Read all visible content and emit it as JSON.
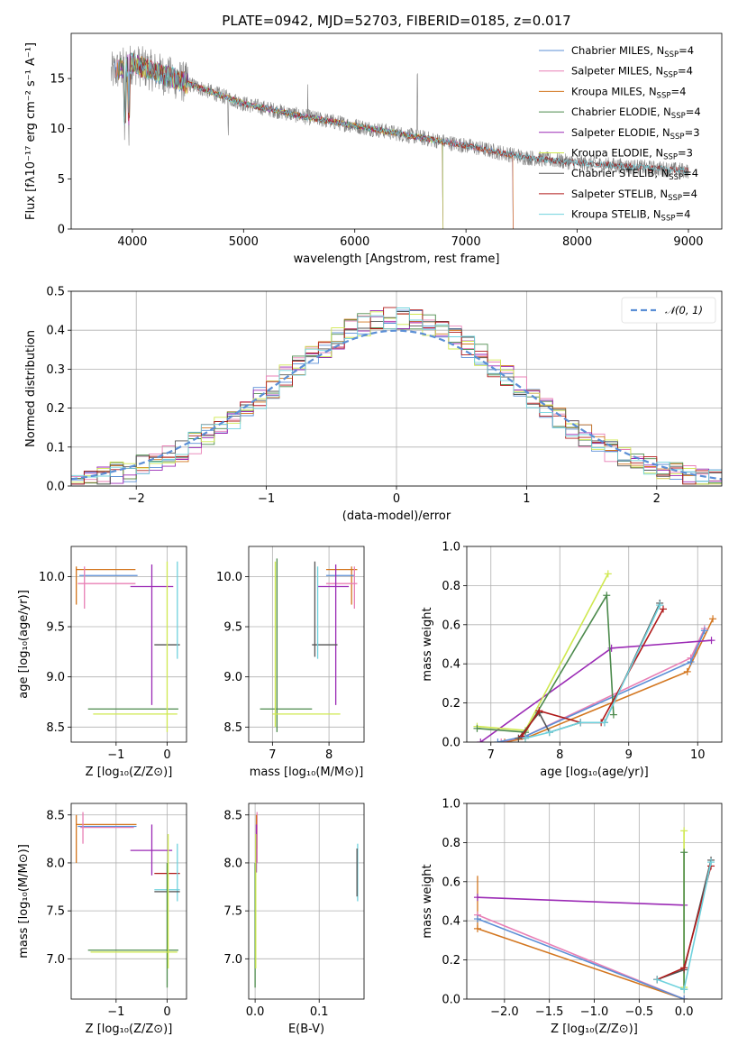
{
  "title": "PLATE=0942, MJD=52703, FIBERID=0185, z=0.017",
  "colors": {
    "chabrier_miles": "#5b8fd6",
    "salpeter_miles": "#e87fb5",
    "kroupa_miles": "#d3761f",
    "chabrier_elodie": "#4c8a4c",
    "salpeter_elodie": "#9b2ab5",
    "kroupa_elodie": "#cfe84f",
    "chabrier_stelib": "#555555",
    "salpeter_stelib": "#b01a1a",
    "kroupa_stelib": "#6fd2dd",
    "data": "#808080",
    "gauss": "#5b8fd6"
  },
  "chart_data": [
    {
      "type": "line",
      "xlabel": "wavelength [Angstrom, rest frame]",
      "ylabel": "Flux [fλ10⁻¹⁷ erg cm⁻² s⁻¹ A⁻¹]",
      "xlim": [
        3450,
        9300
      ],
      "ylim": [
        0,
        19.5
      ],
      "xticks": [
        4000,
        5000,
        6000,
        7000,
        8000,
        9000
      ],
      "yticks": [
        0,
        5,
        10,
        15
      ],
      "legend_position": "top-right",
      "continuum": {
        "x": [
          3800,
          4000,
          4500,
          5000,
          5500,
          6000,
          6500,
          7000,
          7500,
          8000,
          8500,
          9000
        ],
        "y": [
          15.5,
          16.5,
          14.5,
          12.5,
          11.3,
          10.3,
          9.3,
          8.3,
          7.2,
          6.6,
          6.2,
          5.8
        ]
      },
      "series": [
        {
          "name": "Chabrier MILES, N",
          "sub": "SSP",
          "suffix": "=4"
        },
        {
          "name": "Salpeter MILES, N",
          "sub": "SSP",
          "suffix": "=4"
        },
        {
          "name": "Kroupa MILES, N",
          "sub": "SSP",
          "suffix": "=4"
        },
        {
          "name": "Chabrier ELODIE, N",
          "sub": "SSP",
          "suffix": "=4"
        },
        {
          "name": "Salpeter ELODIE, N",
          "sub": "SSP",
          "suffix": "=3"
        },
        {
          "name": "Kroupa ELODIE, N",
          "sub": "SSP",
          "suffix": "=3"
        },
        {
          "name": "Chabrier STELIB, N",
          "sub": "SSP",
          "suffix": "=4"
        },
        {
          "name": "Salpeter STELIB, N",
          "sub": "SSP",
          "suffix": "=4"
        },
        {
          "name": "Kroupa STELIB, N",
          "sub": "SSP",
          "suffix": "=4"
        }
      ]
    },
    {
      "type": "line",
      "xlabel": "(data-model)/error",
      "ylabel": "Normed distribution",
      "xlim": [
        -2.5,
        2.5
      ],
      "ylim": [
        0,
        0.5
      ],
      "xticks": [
        -2,
        -1,
        0,
        1,
        2
      ],
      "yticks": [
        0.0,
        0.1,
        0.2,
        0.3,
        0.4,
        0.5
      ],
      "gauss_label": "𝒩(0, 1)",
      "bin_width": 0.1,
      "bin_start": -2.5,
      "base_amplitude": 0.41,
      "base_sigma": 0.92
    },
    {
      "type": "scatter",
      "xlabel": "Z [log₁₀(Z/Z⊙)]",
      "ylabel": "age  [log₁₀(age/yr)]",
      "xlim": [
        -1.88,
        0.38
      ],
      "ylim": [
        8.35,
        10.3
      ],
      "xticks": [
        -1,
        0
      ],
      "yticks": [
        8.5,
        9.0,
        9.5,
        10.0
      ],
      "segments": [
        {
          "c": "kroupa_miles",
          "x1": -1.78,
          "x2": -0.62,
          "y": 10.07,
          "vx": -1.78,
          "vy1": 9.72,
          "vy2": 10.1
        },
        {
          "c": "chabrier_miles",
          "x1": -1.72,
          "x2": -0.58,
          "y": 10.01
        },
        {
          "c": "salpeter_miles",
          "x1": -1.75,
          "x2": -0.62,
          "y": 9.93,
          "vx": -1.62,
          "vy1": 9.68,
          "vy2": 10.1
        },
        {
          "c": "salpeter_elodie",
          "x1": -0.72,
          "x2": 0.12,
          "y": 9.9,
          "vx": -0.3,
          "vy1": 8.72,
          "vy2": 10.12
        },
        {
          "c": "chabrier_stelib",
          "x1": -0.25,
          "x2": 0.25,
          "y": 9.32
        },
        {
          "c": "kroupa_stelib",
          "x1": 0.2,
          "x2": 0.2,
          "y": 9.32,
          "vx": 0.2,
          "vy1": 9.18,
          "vy2": 10.15
        },
        {
          "c": "chabrier_elodie",
          "x1": -1.55,
          "x2": 0.22,
          "y": 8.68
        },
        {
          "c": "kroupa_elodie",
          "x1": -1.45,
          "x2": 0.2,
          "y": 8.63,
          "vx": 0.0,
          "vy1": 8.45,
          "vy2": 10.15
        }
      ]
    },
    {
      "type": "scatter",
      "xlabel": "mass [log₁₀(M/M⊙)]",
      "ylabel": "",
      "xlim": [
        6.58,
        8.62
      ],
      "ylim": [
        8.35,
        10.3
      ],
      "xticks": [
        7,
        8
      ],
      "yticks": [
        8.5,
        9.0,
        9.5,
        10.0
      ],
      "segments": [
        {
          "c": "kroupa_miles",
          "x1": 7.95,
          "x2": 8.5,
          "y": 10.07,
          "vx": 8.4,
          "vy1": 9.72,
          "vy2": 10.1
        },
        {
          "c": "chabrier_miles",
          "x1": 7.95,
          "x2": 8.45,
          "y": 10.01
        },
        {
          "c": "salpeter_miles",
          "x1": 7.95,
          "x2": 8.5,
          "y": 9.93,
          "vx": 8.45,
          "vy1": 9.68,
          "vy2": 10.1
        },
        {
          "c": "salpeter_elodie",
          "x1": 7.8,
          "x2": 8.35,
          "y": 9.9,
          "vx": 8.12,
          "vy1": 8.72,
          "vy2": 10.12
        },
        {
          "c": "chabrier_stelib",
          "x1": 7.7,
          "x2": 8.15,
          "y": 9.32,
          "vx": 7.75,
          "vy1": 9.2,
          "vy2": 10.15
        },
        {
          "c": "kroupa_stelib",
          "x1": 7.8,
          "x2": 7.8,
          "y": 9.32,
          "vx": 7.8,
          "vy1": 9.18,
          "vy2": 10.1
        },
        {
          "c": "chabrier_elodie",
          "x1": 6.78,
          "x2": 7.7,
          "y": 8.68,
          "vx": 7.08,
          "vy1": 8.45,
          "vy2": 10.18
        },
        {
          "c": "kroupa_elodie",
          "x1": 7.0,
          "x2": 8.2,
          "y": 8.63,
          "vx": 7.05,
          "vy1": 8.5,
          "vy2": 10.15
        }
      ]
    },
    {
      "type": "line",
      "xlabel": "age  [log₁₀(age/yr)]",
      "ylabel": "mass weight",
      "xlim": [
        6.65,
        10.35
      ],
      "ylim": [
        0,
        1
      ],
      "xticks": [
        7,
        8,
        9,
        10
      ],
      "yticks": [
        0.0,
        0.2,
        0.4,
        0.6,
        0.8,
        1.0
      ],
      "lines": [
        {
          "c": "kroupa_miles",
          "x": [
            7.2,
            7.5,
            9.85,
            10.22
          ],
          "y": [
            0.0,
            0.02,
            0.36,
            0.63
          ]
        },
        {
          "c": "salpeter_miles",
          "x": [
            7.15,
            7.5,
            9.9,
            10.1
          ],
          "y": [
            0.0,
            0.03,
            0.43,
            0.58
          ]
        },
        {
          "c": "chabrier_miles",
          "x": [
            7.1,
            7.5,
            9.9,
            10.1
          ],
          "y": [
            0.0,
            0.03,
            0.41,
            0.57
          ]
        },
        {
          "c": "salpeter_elodie",
          "x": [
            6.85,
            8.75,
            10.2
          ],
          "y": [
            0.0,
            0.48,
            0.52
          ]
        },
        {
          "c": "kroupa_elodie",
          "x": [
            6.8,
            7.5,
            8.7
          ],
          "y": [
            0.08,
            0.06,
            0.86
          ]
        },
        {
          "c": "chabrier_elodie",
          "x": [
            6.8,
            7.5,
            8.68,
            8.78
          ],
          "y": [
            0.07,
            0.05,
            0.75,
            0.14
          ]
        },
        {
          "c": "chabrier_stelib",
          "x": [
            7.4,
            7.7,
            7.85,
            8.3,
            8.65,
            9.45
          ],
          "y": [
            0.02,
            0.15,
            0.05,
            0.1,
            0.1,
            0.71
          ]
        },
        {
          "c": "salpeter_stelib",
          "x": [
            7.45,
            7.7,
            8.3,
            8.6,
            9.5
          ],
          "y": [
            0.03,
            0.16,
            0.1,
            0.1,
            0.68
          ]
        },
        {
          "c": "kroupa_stelib",
          "x": [
            7.5,
            7.85,
            8.3,
            8.65,
            9.45
          ],
          "y": [
            0.02,
            0.05,
            0.1,
            0.1,
            0.7
          ]
        }
      ]
    },
    {
      "type": "scatter",
      "xlabel": "Z [log₁₀(Z/Z⊙)]",
      "ylabel": "mass [log₁₀(M/M⊙)]",
      "xlim": [
        -1.88,
        0.38
      ],
      "ylim": [
        6.58,
        8.62
      ],
      "xticks": [
        -1,
        0
      ],
      "yticks": [
        7.0,
        7.5,
        8.0,
        8.5
      ],
      "segments": [
        {
          "c": "kroupa_miles",
          "x1": -1.78,
          "x2": -0.6,
          "y": 8.4,
          "vx": -1.78,
          "vy1": 8.0,
          "vy2": 8.5
        },
        {
          "c": "chabrier_miles",
          "x1": -1.75,
          "x2": -0.6,
          "y": 8.38
        },
        {
          "c": "salpeter_miles",
          "x1": -1.7,
          "x2": -0.65,
          "y": 8.37,
          "vx": -1.65,
          "vy1": 8.2,
          "vy2": 8.53
        },
        {
          "c": "salpeter_elodie",
          "x1": -0.72,
          "x2": 0.1,
          "y": 8.13,
          "vx": -0.3,
          "vy1": 7.87,
          "vy2": 8.4
        },
        {
          "c": "salpeter_stelib",
          "x1": -0.25,
          "x2": 0.25,
          "y": 7.89
        },
        {
          "c": "kroupa_stelib",
          "x1": -0.25,
          "x2": 0.25,
          "y": 7.72,
          "vx": 0.2,
          "vy1": 7.6,
          "vy2": 8.2
        },
        {
          "c": "chabrier_stelib",
          "x1": -0.25,
          "x2": 0.25,
          "y": 7.7
        },
        {
          "c": "chabrier_elodie",
          "x1": -1.55,
          "x2": 0.22,
          "y": 7.09,
          "vx": 0.0,
          "vy1": 6.7,
          "vy2": 8.0
        },
        {
          "c": "kroupa_elodie",
          "x1": -1.5,
          "x2": 0.2,
          "y": 7.07,
          "vx": 0.02,
          "vy1": 6.9,
          "vy2": 8.3
        }
      ]
    },
    {
      "type": "scatter",
      "xlabel": "E(B-V)",
      "ylabel": "",
      "xlim": [
        -0.01,
        0.17
      ],
      "ylim": [
        6.58,
        8.62
      ],
      "xticks": [
        0.0,
        0.1
      ],
      "yticks": [
        7.0,
        7.5,
        8.0,
        8.5
      ],
      "segments": [
        {
          "c": "salpeter_miles",
          "x1": 0.003,
          "x2": 0.003,
          "y": 8.4,
          "vx": 0.003,
          "vy1": 8.0,
          "vy2": 8.53
        },
        {
          "c": "kroupa_miles",
          "x1": 0.002,
          "x2": 0.002,
          "y": 8.4,
          "vx": 0.002,
          "vy1": 8.15,
          "vy2": 8.5
        },
        {
          "c": "salpeter_elodie",
          "x1": 0.002,
          "x2": 0.002,
          "y": 8.13,
          "vx": 0.002,
          "vy1": 7.9,
          "vy2": 8.4
        },
        {
          "c": "chabrier_elodie",
          "x1": 0.0,
          "x2": 0.0,
          "y": 7.09,
          "vx": 0.0,
          "vy1": 6.7,
          "vy2": 8.0
        },
        {
          "c": "kroupa_elodie",
          "x1": 0.001,
          "x2": 0.001,
          "y": 7.07,
          "vx": 0.001,
          "vy1": 6.9,
          "vy2": 8.3
        },
        {
          "c": "kroupa_stelib",
          "x1": 0.16,
          "x2": 0.16,
          "y": 7.9,
          "vx": 0.16,
          "vy1": 7.6,
          "vy2": 8.2
        },
        {
          "c": "chabrier_stelib",
          "x1": 0.159,
          "x2": 0.159,
          "y": 7.9,
          "vx": 0.159,
          "vy1": 7.65,
          "vy2": 8.15
        }
      ]
    },
    {
      "type": "line",
      "xlabel": "Z [log₁₀(Z/Z⊙)]",
      "ylabel": "mass weight",
      "xlim": [
        -2.42,
        0.42
      ],
      "ylim": [
        0,
        1
      ],
      "xticks": [
        -2.0,
        -1.5,
        -1.0,
        -0.5,
        0.0
      ],
      "yticks": [
        0.0,
        0.2,
        0.4,
        0.6,
        0.8,
        1.0
      ],
      "lines": [
        {
          "c": "kroupa_miles",
          "x": [
            -2.3,
            0.0
          ],
          "y": [
            0.36,
            0.0
          ],
          "errx": -2.3,
          "erry1": 0.36,
          "erry2": 0.63
        },
        {
          "c": "salpeter_miles",
          "x": [
            -2.3,
            0.0
          ],
          "y": [
            0.43,
            0.0
          ]
        },
        {
          "c": "chabrier_miles",
          "x": [
            -2.3,
            0.0
          ],
          "y": [
            0.41,
            0.0
          ]
        },
        {
          "c": "salpeter_elodie",
          "x": [
            -2.3,
            0.0
          ],
          "y": [
            0.52,
            0.48
          ]
        },
        {
          "c": "kroupa_elodie",
          "x": [
            0.0,
            0.0
          ],
          "y": [
            0.06,
            0.86
          ]
        },
        {
          "c": "chabrier_elodie",
          "x": [
            0.0,
            0.0
          ],
          "y": [
            0.05,
            0.75
          ]
        },
        {
          "c": "chabrier_stelib",
          "x": [
            -0.3,
            0.0,
            0.3
          ],
          "y": [
            0.1,
            0.15,
            0.71
          ]
        },
        {
          "c": "salpeter_stelib",
          "x": [
            -0.3,
            0.0,
            0.3
          ],
          "y": [
            0.1,
            0.16,
            0.68
          ]
        },
        {
          "c": "kroupa_stelib",
          "x": [
            -0.3,
            0.0,
            0.3
          ],
          "y": [
            0.1,
            0.05,
            0.7
          ]
        }
      ]
    }
  ]
}
